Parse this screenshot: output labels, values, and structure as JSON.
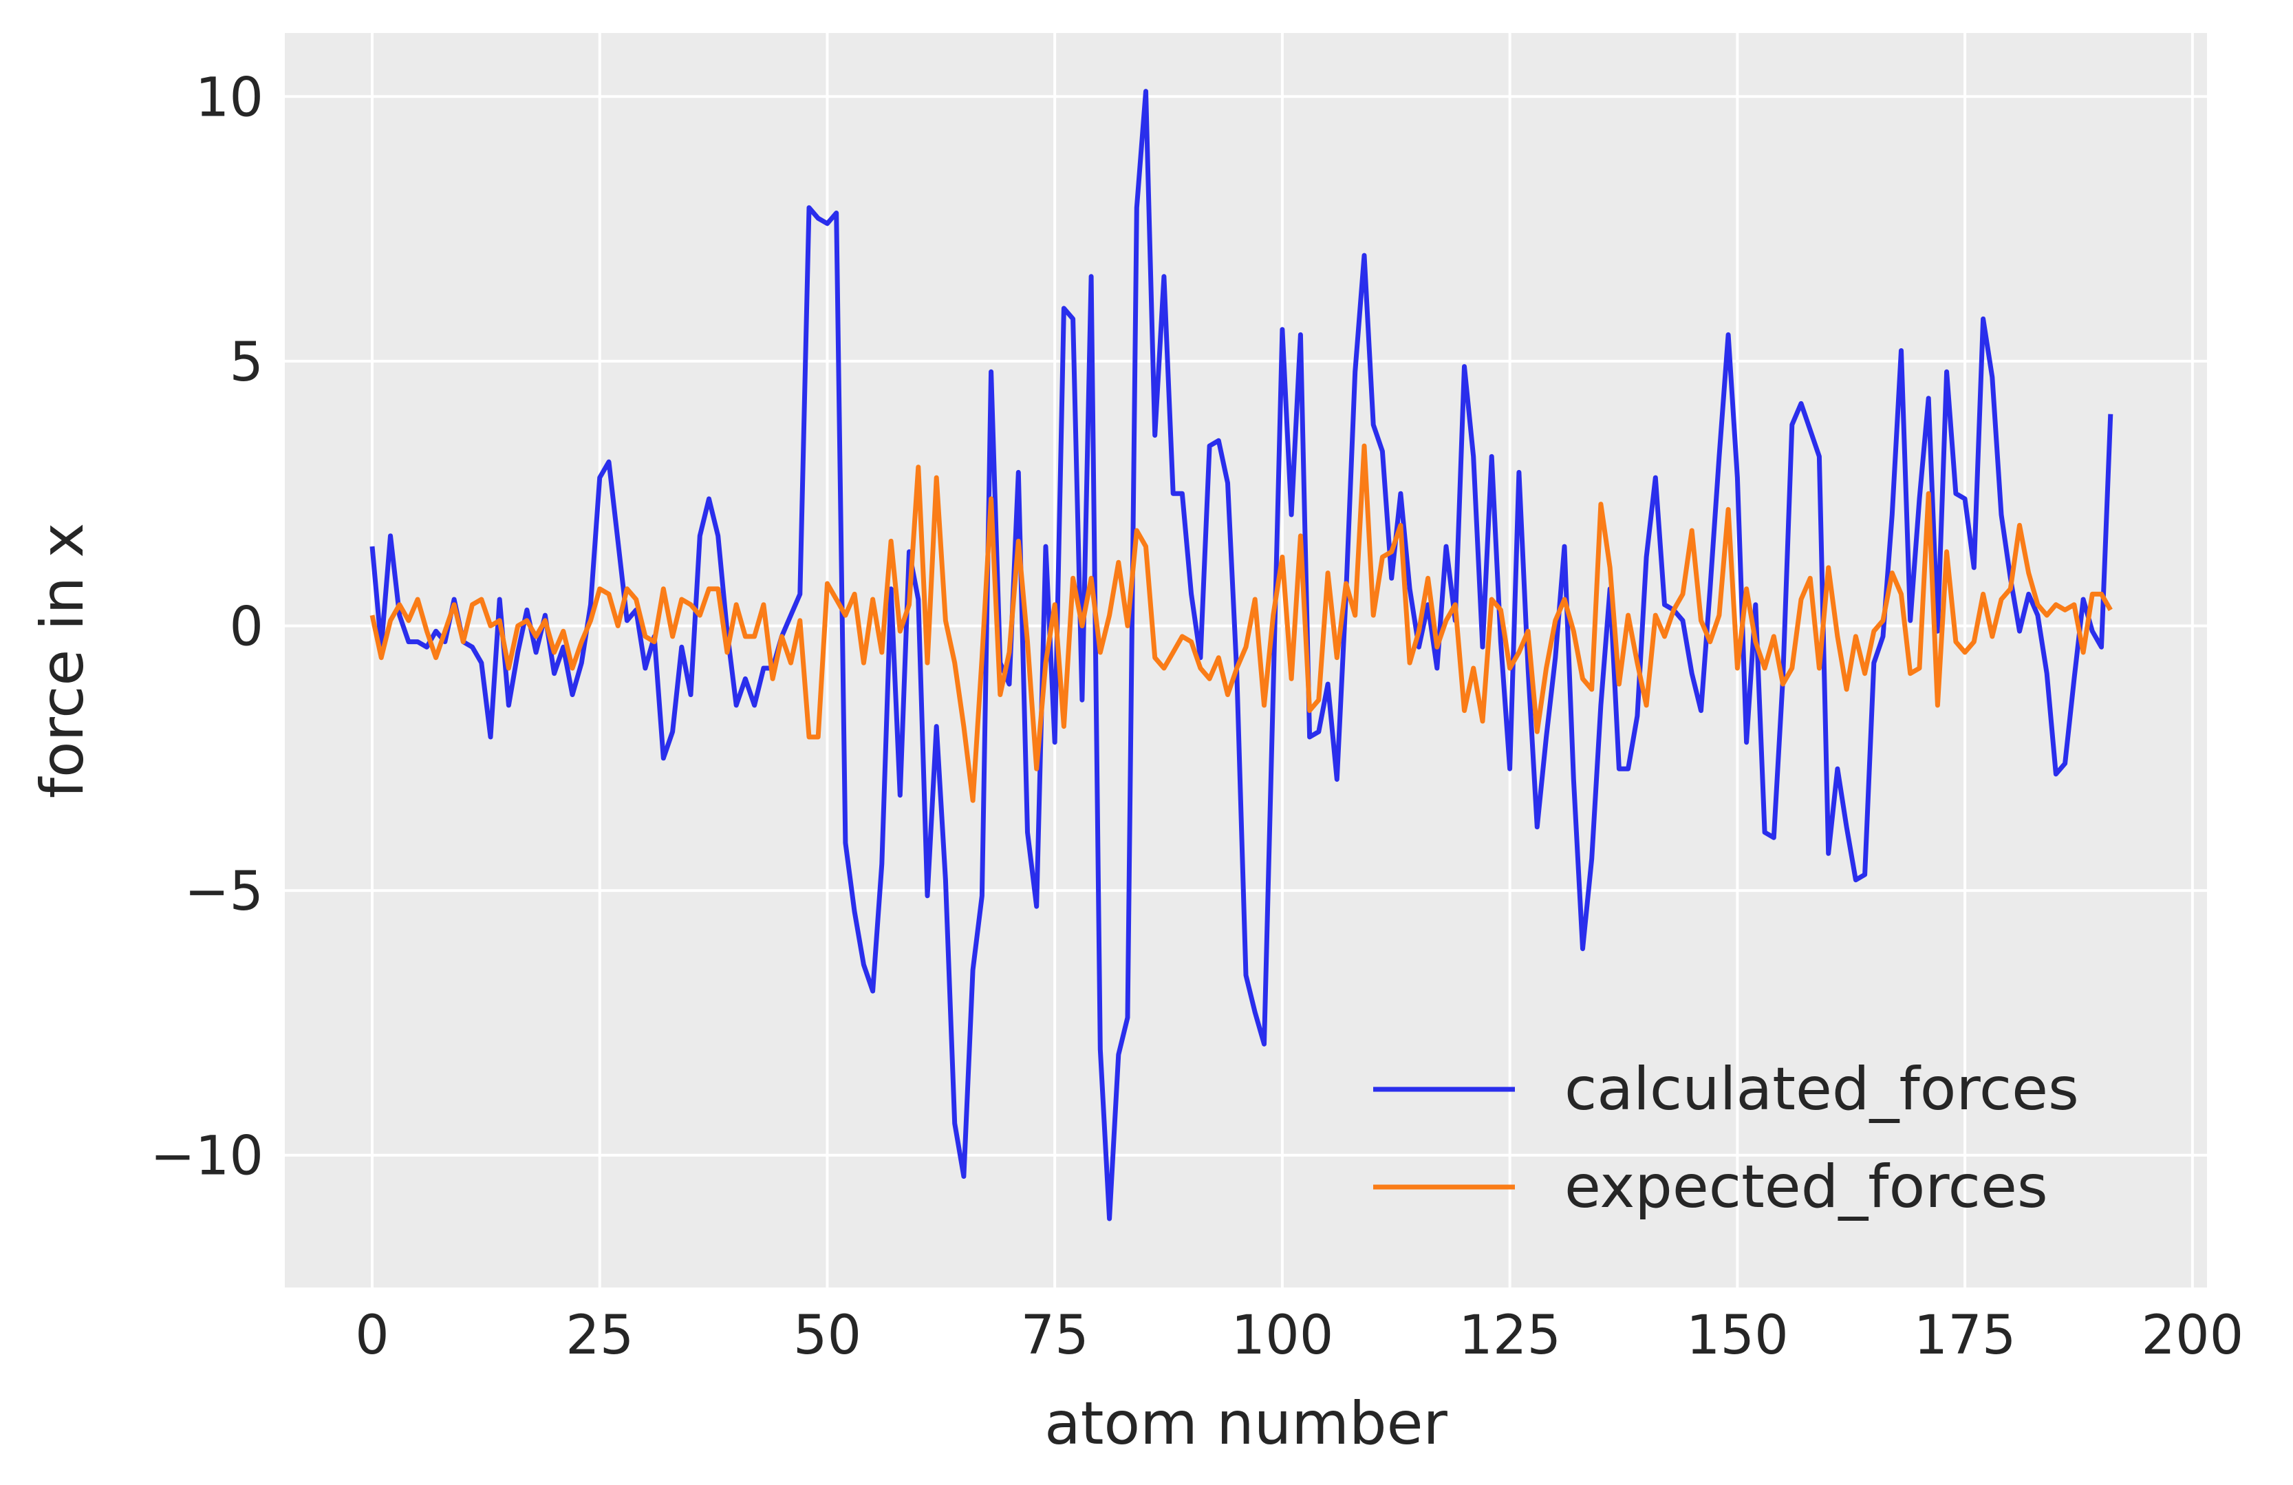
{
  "chart_data": {
    "type": "line",
    "title": "",
    "xlabel": "atom number",
    "ylabel": "force in x",
    "xlim": [
      -9.6,
      201.6
    ],
    "ylim": [
      -12.5,
      11.2
    ],
    "x_ticks": [
      0,
      25,
      50,
      75,
      100,
      125,
      150,
      175,
      200
    ],
    "x_tick_labels": [
      "0",
      "25",
      "50",
      "75",
      "100",
      "125",
      "150",
      "175",
      "200"
    ],
    "y_ticks": [
      10,
      5,
      0,
      -5,
      -10
    ],
    "y_tick_labels": [
      "10",
      "5",
      "0",
      "−5",
      "−10"
    ],
    "grid": true,
    "legend_position": "lower-right",
    "background_color": "#ebebeb",
    "series": [
      {
        "name": "calculated_forces",
        "color": "#2a2eec",
        "values": [
          1.5,
          -0.4,
          1.7,
          0.2,
          -0.3,
          -0.3,
          -0.4,
          -0.1,
          -0.3,
          0.5,
          -0.3,
          -0.4,
          -0.7,
          -2.1,
          0.5,
          -1.5,
          -0.5,
          0.3,
          -0.5,
          0.2,
          -0.9,
          -0.4,
          -1.3,
          -0.7,
          0.4,
          2.8,
          3.1,
          1.6,
          0.1,
          0.3,
          -0.8,
          -0.2,
          -2.5,
          -2.0,
          -0.4,
          -1.3,
          1.7,
          2.4,
          1.7,
          -0.1,
          -1.5,
          -1.0,
          -1.5,
          -0.8,
          -0.8,
          -0.2,
          0.2,
          0.6,
          7.9,
          7.7,
          7.6,
          7.8,
          -4.1,
          -5.4,
          -6.4,
          -6.9,
          -4.5,
          0.7,
          -3.2,
          1.4,
          0.5,
          -5.1,
          -1.9,
          -4.8,
          -9.4,
          -10.4,
          -6.5,
          -5.1,
          4.8,
          -0.7,
          -1.1,
          2.9,
          -3.9,
          -5.3,
          1.5,
          -2.2,
          6.0,
          5.8,
          -1.4,
          6.6,
          -8.0,
          -11.2,
          -8.1,
          -7.4,
          7.9,
          10.1,
          3.6,
          6.6,
          2.5,
          2.5,
          0.6,
          -0.6,
          3.4,
          3.5,
          2.7,
          -0.9,
          -6.6,
          -7.3,
          -7.9,
          -1.2,
          5.6,
          2.1,
          5.5,
          -2.1,
          -2.0,
          -1.1,
          -2.9,
          0.6,
          4.8,
          7.0,
          3.8,
          3.3,
          0.9,
          2.5,
          0.7,
          -0.4,
          0.4,
          -0.8,
          1.5,
          0.1,
          4.9,
          3.2,
          -0.4,
          3.2,
          -0.3,
          -2.7,
          2.9,
          -0.8,
          -3.8,
          -2.1,
          -0.6,
          1.5,
          -2.9,
          -6.1,
          -4.4,
          -1.5,
          0.7,
          -2.7,
          -2.7,
          -1.7,
          1.3,
          2.8,
          0.4,
          0.3,
          0.1,
          -0.9,
          -1.6,
          0.7,
          3.2,
          5.5,
          2.8,
          -2.2,
          0.4,
          -3.9,
          -4.0,
          -1.0,
          3.8,
          4.2,
          3.7,
          3.2,
          -4.3,
          -2.7,
          -3.8,
          -4.8,
          -4.7,
          -0.7,
          -0.2,
          2.1,
          5.2,
          0.1,
          2.4,
          4.3,
          -0.1,
          4.8,
          2.5,
          2.4,
          1.1,
          5.8,
          4.7,
          2.1,
          0.9,
          -0.1,
          0.6,
          0.2,
          -0.9,
          -2.8,
          -2.6,
          -1.0,
          0.5,
          -0.1,
          -0.4,
          4.0
        ]
      },
      {
        "name": "expected_forces",
        "color": "#fa7c17",
        "values": [
          0.2,
          -0.6,
          0.1,
          0.4,
          0.1,
          0.5,
          -0.1,
          -0.6,
          -0.1,
          0.4,
          -0.3,
          0.4,
          0.5,
          0.0,
          0.1,
          -0.8,
          0.0,
          0.1,
          -0.2,
          0.1,
          -0.5,
          -0.1,
          -0.8,
          -0.3,
          0.1,
          0.7,
          0.6,
          0.0,
          0.7,
          0.5,
          -0.2,
          -0.3,
          0.7,
          -0.2,
          0.5,
          0.4,
          0.2,
          0.7,
          0.7,
          -0.5,
          0.4,
          -0.2,
          -0.2,
          0.4,
          -1.0,
          -0.2,
          -0.7,
          0.1,
          -2.1,
          -2.1,
          0.8,
          0.5,
          0.2,
          0.6,
          -0.7,
          0.5,
          -0.5,
          1.6,
          -0.1,
          0.4,
          3.0,
          -0.7,
          2.8,
          0.1,
          -0.7,
          -1.9,
          -3.3,
          -0.6,
          2.4,
          -1.3,
          -0.5,
          1.6,
          -0.3,
          -2.7,
          -0.7,
          0.4,
          -1.9,
          0.9,
          0.0,
          0.9,
          -0.5,
          0.2,
          1.2,
          0.0,
          1.8,
          1.5,
          -0.6,
          -0.8,
          -0.5,
          -0.2,
          -0.3,
          -0.8,
          -1.0,
          -0.6,
          -1.3,
          -0.8,
          -0.4,
          0.5,
          -1.5,
          0.2,
          1.3,
          -1.0,
          1.7,
          -1.6,
          -1.4,
          1.0,
          -0.6,
          0.8,
          0.2,
          3.4,
          0.2,
          1.3,
          1.4,
          1.9,
          -0.7,
          -0.1,
          0.9,
          -0.4,
          0.1,
          0.4,
          -1.6,
          -0.8,
          -1.8,
          0.5,
          0.3,
          -0.8,
          -0.5,
          -0.1,
          -2.0,
          -0.8,
          0.1,
          0.5,
          -0.1,
          -1.0,
          -1.2,
          2.3,
          1.1,
          -1.1,
          0.2,
          -0.7,
          -1.5,
          0.2,
          -0.2,
          0.3,
          0.6,
          1.8,
          0.1,
          -0.3,
          0.2,
          2.2,
          -0.8,
          0.7,
          -0.3,
          -0.8,
          -0.2,
          -1.1,
          -0.8,
          0.5,
          0.9,
          -0.8,
          1.1,
          -0.2,
          -1.2,
          -0.2,
          -0.9,
          -0.1,
          0.1,
          1.0,
          0.6,
          -0.9,
          -0.8,
          2.5,
          -1.5,
          1.4,
          -0.3,
          -0.5,
          -0.3,
          0.6,
          -0.2,
          0.5,
          0.7,
          1.9,
          1.0,
          0.4,
          0.2,
          0.4,
          0.3,
          0.4,
          -0.5,
          0.6,
          0.6,
          0.3
        ]
      }
    ]
  }
}
